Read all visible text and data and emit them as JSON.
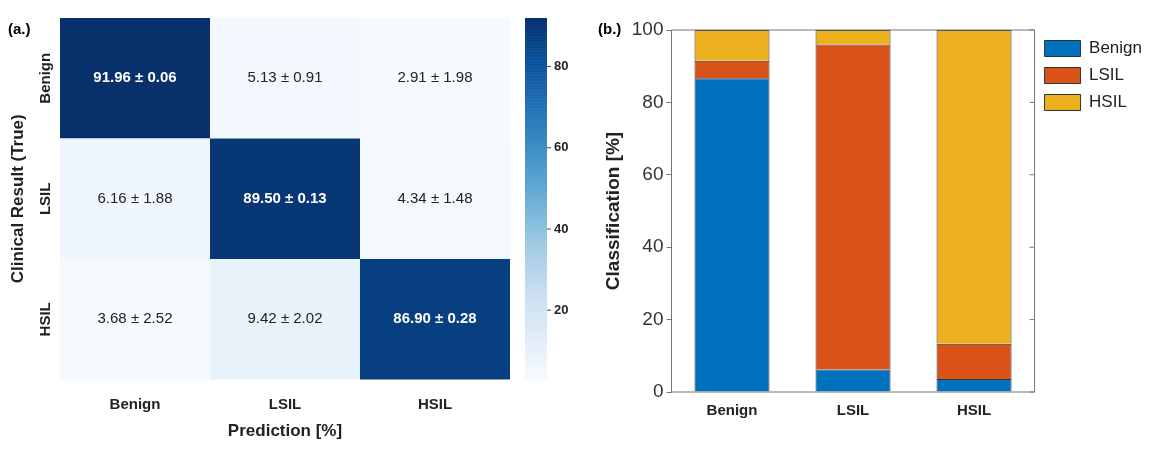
{
  "chart_data": [
    {
      "type": "heatmap",
      "xlabel": "Prediction [%]",
      "ylabel": "Clinical Result (True)",
      "annotations": [
        "(a.)"
      ],
      "categories": [
        "Benign",
        "LSIL",
        "HSIL"
      ],
      "y_categories": [
        "Benign",
        "LSIL",
        "HSIL"
      ],
      "cells": [
        [
          91.96,
          5.13,
          2.91
        ],
        [
          6.16,
          89.5,
          4.34
        ],
        [
          3.68,
          9.42,
          86.9
        ]
      ],
      "cell_labels": [
        [
          "91.96 ± 0.06",
          "5.13 ± 0.91",
          "2.91 ± 1.98"
        ],
        [
          "6.16 ± 1.88",
          "89.50 ± 0.13",
          "4.34 ± 1.48"
        ],
        [
          "3.68 ± 2.52",
          "9.42 ± 2.02",
          "86.90 ± 0.28"
        ]
      ],
      "clim": [
        2.91,
        91.96
      ],
      "cticks": [
        20,
        40,
        60,
        80
      ]
    },
    {
      "type": "bar",
      "stacked": true,
      "ylabel": "Classification [%]",
      "annotations": [
        "(b.)"
      ],
      "legend": "top right",
      "grid": false,
      "categories": [
        "Benign",
        "LSIL",
        "HSIL"
      ],
      "ylim": [
        0,
        100
      ],
      "yticks": [
        0,
        20,
        40,
        60,
        80,
        100
      ],
      "series": [
        {
          "name": "Benign",
          "color": "#0072bd",
          "values": [
            86.7,
            6.2,
            3.6
          ]
        },
        {
          "name": "LSIL",
          "color": "#d95319",
          "values": [
            4.8,
            89.8,
            9.7
          ]
        },
        {
          "name": "HSIL",
          "color": "#edb120",
          "values": [
            8.5,
            4.0,
            86.7
          ]
        }
      ]
    }
  ]
}
